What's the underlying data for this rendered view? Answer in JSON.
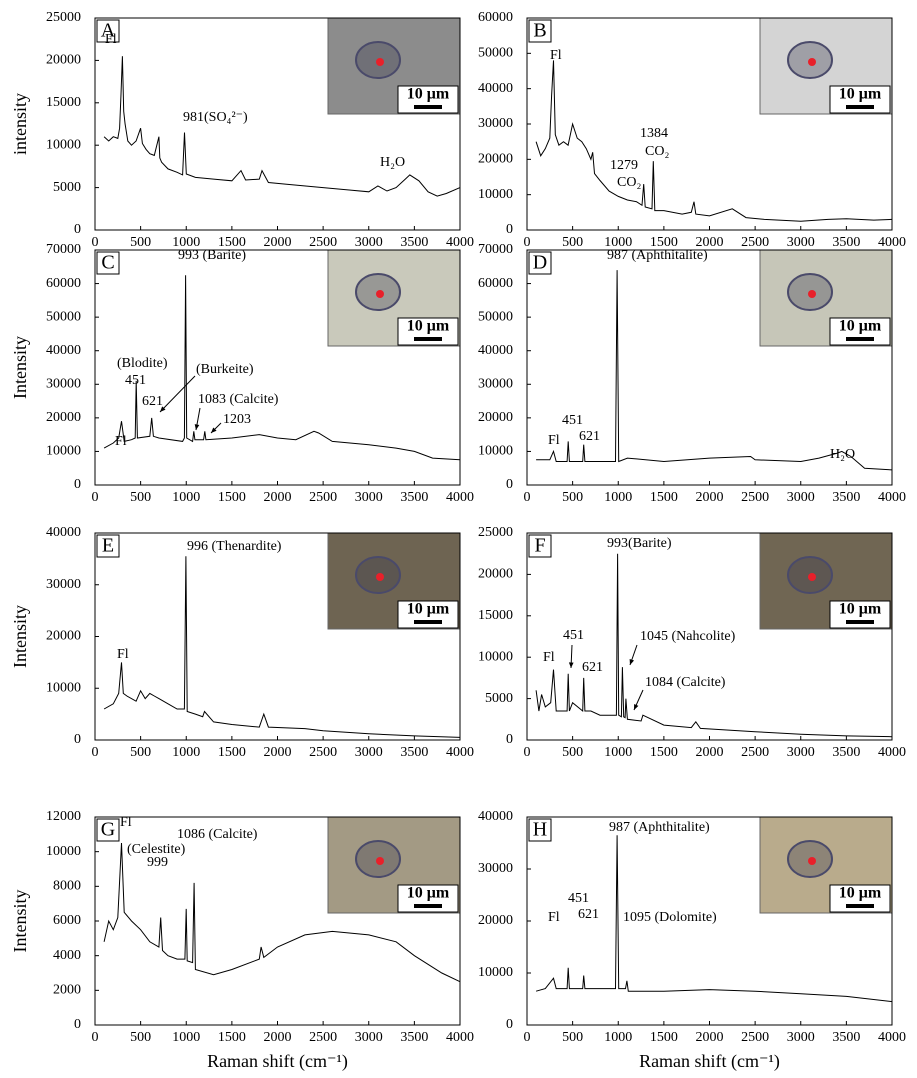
{
  "chart_data": [
    {
      "type": "line",
      "label": "A",
      "ylabel": "intensity",
      "color": "#000000",
      "scale_bar": "10 μm",
      "annotations": [
        "Fl",
        "981(SO₄²⁻)",
        "H₂O"
      ],
      "xlim": [
        0,
        4000
      ],
      "xticks": [
        0,
        500,
        1000,
        1500,
        2000,
        2500,
        3000,
        3500,
        4000
      ],
      "ylim": [
        0,
        25000
      ],
      "yticks": [
        0,
        5000,
        10000,
        15000,
        20000,
        25000
      ],
      "x": [
        100,
        150,
        200,
        250,
        270,
        285,
        300,
        315,
        330,
        360,
        400,
        450,
        500,
        520,
        560,
        600,
        650,
        700,
        710,
        730,
        800,
        900,
        960,
        981,
        1000,
        1100,
        1300,
        1500,
        1600,
        1650,
        1800,
        1830,
        1900,
        2100,
        2500,
        2800,
        3000,
        3100,
        3200,
        3300,
        3400,
        3450,
        3550,
        3650,
        3750,
        3850,
        4000
      ],
      "values": [
        11000,
        10500,
        11000,
        10800,
        12000,
        16000,
        20500,
        14000,
        12500,
        10500,
        10000,
        10500,
        12000,
        10200,
        9500,
        9000,
        8800,
        11000,
        8500,
        8000,
        7200,
        6800,
        6500,
        11500,
        6600,
        6200,
        6000,
        5800,
        7000,
        5900,
        6000,
        7000,
        5600,
        5400,
        5000,
        4700,
        4500,
        5200,
        4600,
        5000,
        6000,
        6500,
        5800,
        4500,
        4000,
        4300,
        5000
      ]
    },
    {
      "type": "line",
      "label": "B",
      "color": "#000000",
      "scale_bar": "10 μm",
      "annotations": [
        "Fl",
        "1384",
        "CO₂",
        "1279",
        "CO₂"
      ],
      "xlim": [
        0,
        4000
      ],
      "xticks": [
        0,
        500,
        1000,
        1500,
        2000,
        2500,
        3000,
        3500,
        4000
      ],
      "ylim": [
        0,
        60000
      ],
      "yticks": [
        0,
        10000,
        20000,
        30000,
        40000,
        50000,
        60000
      ],
      "x": [
        100,
        150,
        200,
        250,
        270,
        290,
        310,
        350,
        400,
        450,
        500,
        550,
        600,
        650,
        700,
        720,
        740,
        800,
        900,
        1000,
        1100,
        1200,
        1260,
        1279,
        1295,
        1370,
        1384,
        1400,
        1500,
        1700,
        1800,
        1830,
        1850,
        2000,
        2250,
        2400,
        2600,
        3000,
        3300,
        3500,
        3800,
        4000
      ],
      "values": [
        25000,
        21000,
        23000,
        26000,
        38000,
        48000,
        27000,
        24000,
        25000,
        24000,
        30000,
        26000,
        25000,
        23000,
        20000,
        22000,
        16000,
        14000,
        11000,
        9500,
        8500,
        8000,
        7000,
        13000,
        6500,
        6000,
        19500,
        5500,
        5500,
        4500,
        5000,
        8000,
        4500,
        4000,
        6000,
        3500,
        3000,
        2500,
        3000,
        3200,
        2800,
        3000
      ]
    },
    {
      "type": "line",
      "label": "C",
      "ylabel": "Intensity",
      "color": "#000000",
      "scale_bar": "10 μm",
      "annotations": [
        "993 (Barite)",
        "(Blodite)",
        "451",
        "621",
        "(Burkeite)",
        "1083 (Calcite)",
        "1203",
        "Fl"
      ],
      "xlim": [
        0,
        4000
      ],
      "xticks": [
        0,
        500,
        1000,
        1500,
        2000,
        2500,
        3000,
        3500,
        4000
      ],
      "ylim": [
        0,
        70000
      ],
      "yticks": [
        0,
        10000,
        20000,
        30000,
        40000,
        50000,
        60000,
        70000
      ],
      "x": [
        100,
        200,
        260,
        290,
        320,
        400,
        440,
        451,
        465,
        600,
        621,
        640,
        700,
        960,
        980,
        993,
        1005,
        1070,
        1083,
        1095,
        1190,
        1203,
        1215,
        1500,
        1800,
        2000,
        2200,
        2400,
        2450,
        2600,
        3000,
        3300,
        3500,
        3700,
        4000
      ],
      "values": [
        11000,
        12500,
        14000,
        19000,
        13000,
        13500,
        14000,
        31000,
        14000,
        14500,
        20000,
        14500,
        14000,
        13000,
        14000,
        62500,
        14000,
        13000,
        16000,
        13500,
        13500,
        16000,
        13500,
        14000,
        15000,
        14000,
        13500,
        16000,
        15500,
        13000,
        12000,
        11000,
        10000,
        8000,
        7500
      ]
    },
    {
      "type": "line",
      "label": "D",
      "color": "#000000",
      "scale_bar": "10 μm",
      "annotations": [
        "987 (Aphthitalite)",
        "451",
        "Fl",
        "621",
        "H₂O"
      ],
      "xlim": [
        0,
        4000
      ],
      "xticks": [
        0,
        500,
        1000,
        1500,
        2000,
        2500,
        3000,
        3500,
        4000
      ],
      "ylim": [
        0,
        70000
      ],
      "yticks": [
        0,
        10000,
        20000,
        30000,
        40000,
        50000,
        60000,
        70000
      ],
      "x": [
        100,
        250,
        290,
        320,
        440,
        451,
        465,
        610,
        621,
        635,
        970,
        987,
        1005,
        1100,
        1500,
        2000,
        2450,
        2500,
        3000,
        3200,
        3400,
        3450,
        3550,
        3700,
        4000
      ],
      "values": [
        7500,
        7500,
        10000,
        7000,
        7000,
        13000,
        7000,
        7000,
        12000,
        7000,
        7000,
        64000,
        7000,
        8000,
        7000,
        8000,
        8500,
        7500,
        7000,
        8000,
        9500,
        10000,
        8500,
        5000,
        4500
      ]
    },
    {
      "type": "line",
      "label": "E",
      "ylabel": "Intensity",
      "color": "#000000",
      "scale_bar": "10 μm",
      "annotations": [
        "996 (Thenardite)",
        "Fl"
      ],
      "xlim": [
        0,
        4000
      ],
      "xticks": [
        0,
        500,
        1000,
        1500,
        2000,
        2500,
        3000,
        3500,
        4000
      ],
      "ylim": [
        0,
        40000
      ],
      "yticks": [
        0,
        10000,
        20000,
        30000,
        40000
      ],
      "x": [
        100,
        200,
        260,
        290,
        310,
        350,
        450,
        500,
        550,
        600,
        650,
        700,
        800,
        900,
        980,
        996,
        1010,
        1100,
        1180,
        1200,
        1300,
        1500,
        1800,
        1850,
        1900,
        2300,
        2500,
        3000,
        3500,
        4000
      ],
      "values": [
        6000,
        7000,
        9000,
        15000,
        9000,
        8500,
        7500,
        9500,
        8000,
        9000,
        8500,
        8000,
        7000,
        6000,
        6000,
        35500,
        5500,
        5000,
        4500,
        5500,
        3500,
        3000,
        2500,
        5000,
        2500,
        2200,
        1800,
        1200,
        800,
        500
      ]
    },
    {
      "type": "line",
      "label": "F",
      "color": "#000000",
      "scale_bar": "10 μm",
      "annotations": [
        "993(Barite)",
        "Fl",
        "451",
        "621",
        "1045 (Nahcolite)",
        "1084 (Calcite)"
      ],
      "xlim": [
        0,
        4000
      ],
      "xticks": [
        0,
        500,
        1000,
        1500,
        2000,
        2500,
        3000,
        3500,
        4000
      ],
      "ylim": [
        0,
        25000
      ],
      "yticks": [
        0,
        5000,
        10000,
        15000,
        20000,
        25000
      ],
      "x": [
        100,
        130,
        160,
        200,
        260,
        290,
        320,
        400,
        440,
        451,
        465,
        500,
        610,
        621,
        635,
        700,
        800,
        980,
        993,
        1005,
        1035,
        1045,
        1060,
        1075,
        1084,
        1100,
        1250,
        1270,
        1500,
        1800,
        1850,
        1900,
        2500,
        3000,
        3500,
        4000
      ],
      "values": [
        6000,
        3500,
        5500,
        4000,
        4500,
        8500,
        3500,
        3500,
        3500,
        8000,
        3500,
        4500,
        3500,
        7500,
        3500,
        3500,
        3000,
        3000,
        22500,
        3000,
        2800,
        8800,
        2800,
        2700,
        5000,
        2500,
        2300,
        3000,
        1800,
        1500,
        2200,
        1400,
        1000,
        700,
        500,
        400
      ]
    },
    {
      "type": "line",
      "label": "G",
      "ylabel": "Intensity",
      "xlabel": "Raman shift (cm⁻¹)",
      "color": "#000000",
      "scale_bar": "10 μm",
      "annotations": [
        "Fl",
        "1086 (Calcite)",
        "(Celestite)",
        "999"
      ],
      "xlim": [
        0,
        4000
      ],
      "xticks": [
        0,
        500,
        1000,
        1500,
        2000,
        2500,
        3000,
        3500,
        4000
      ],
      "ylim": [
        0,
        12000
      ],
      "yticks": [
        0,
        2000,
        4000,
        6000,
        8000,
        10000,
        12000
      ],
      "x": [
        100,
        150,
        200,
        250,
        290,
        320,
        400,
        500,
        600,
        700,
        720,
        740,
        800,
        900,
        985,
        999,
        1010,
        1070,
        1086,
        1100,
        1300,
        1500,
        1800,
        1820,
        1850,
        2000,
        2300,
        2600,
        3000,
        3300,
        3500,
        3800,
        4000
      ],
      "values": [
        4800,
        6000,
        5500,
        6200,
        10500,
        6500,
        6000,
        5500,
        4800,
        4500,
        6200,
        4300,
        4000,
        3800,
        3800,
        6700,
        3700,
        3600,
        8200,
        3200,
        2900,
        3200,
        3800,
        4500,
        3900,
        4500,
        5200,
        5400,
        5200,
        4800,
        4000,
        3000,
        2500
      ]
    },
    {
      "type": "line",
      "label": "H",
      "xlabel": "Raman shift (cm⁻¹)",
      "color": "#000000",
      "scale_bar": "10 μm",
      "annotations": [
        "987 (Aphthitalite)",
        "451",
        "Fl",
        "621",
        "1095 (Dolomite)"
      ],
      "xlim": [
        0,
        4000
      ],
      "xticks": [
        0,
        500,
        1000,
        1500,
        2000,
        2500,
        3000,
        3500,
        4000
      ],
      "ylim": [
        0,
        40000
      ],
      "yticks": [
        0,
        10000,
        20000,
        30000,
        40000
      ],
      "x": [
        100,
        200,
        290,
        320,
        440,
        451,
        465,
        610,
        621,
        635,
        970,
        987,
        1005,
        1080,
        1095,
        1110,
        1500,
        2000,
        2500,
        3000,
        3500,
        4000
      ],
      "values": [
        6500,
        7000,
        9000,
        7000,
        7000,
        11000,
        7000,
        7000,
        9500,
        7000,
        7000,
        36500,
        7000,
        7000,
        8500,
        6500,
        6500,
        6800,
        6500,
        6000,
        5500,
        4500
      ]
    }
  ]
}
